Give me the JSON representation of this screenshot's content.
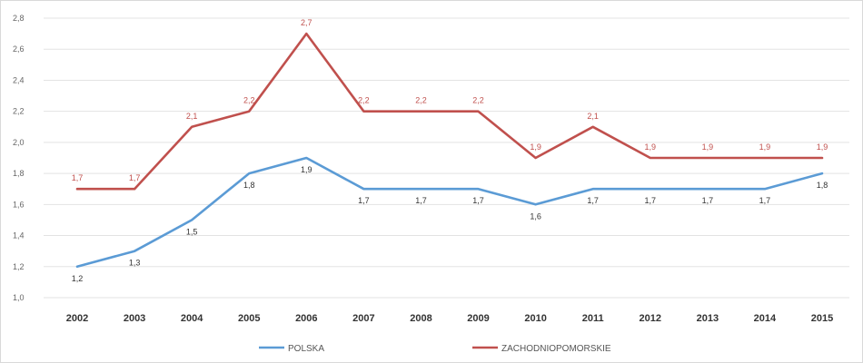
{
  "chart_data": {
    "type": "line",
    "categories": [
      "2002",
      "2003",
      "2004",
      "2005",
      "2006",
      "2007",
      "2008",
      "2009",
      "2010",
      "2011",
      "2012",
      "2013",
      "2014",
      "2015"
    ],
    "series": [
      {
        "name": "POLSKA",
        "color": "#5b9bd5",
        "values": [
          1.2,
          1.3,
          1.5,
          1.8,
          1.9,
          1.7,
          1.7,
          1.7,
          1.6,
          1.7,
          1.7,
          1.7,
          1.7,
          1.8
        ],
        "labels": [
          "1,2",
          "1,3",
          "1,5",
          "1,8",
          "1,9",
          "1,7",
          "1,7",
          "1,7",
          "1,6",
          "1,7",
          "1,7",
          "1,7",
          "1,7",
          "1,8"
        ]
      },
      {
        "name": "ZACHODNIOPOMORSKIE",
        "color": "#c0504d",
        "values": [
          1.7,
          1.7,
          2.1,
          2.2,
          2.7,
          2.2,
          2.2,
          2.2,
          1.9,
          2.1,
          1.9,
          1.9,
          1.9,
          1.9
        ],
        "labels": [
          "1,7",
          "1,7",
          "2,1",
          "2,2",
          "2,7",
          "2,2",
          "2,2",
          "2,2",
          "1,9",
          "2,1",
          "1,9",
          "1,9",
          "1,9",
          "1,9"
        ]
      }
    ],
    "ylim": [
      1.0,
      2.8
    ],
    "yticks": [
      1.0,
      1.2,
      1.4,
      1.6,
      1.8,
      2.0,
      2.2,
      2.4,
      2.6,
      2.8
    ],
    "ytick_labels": [
      "1,0",
      "1,2",
      "1,4",
      "1,6",
      "1,8",
      "2,0",
      "2,2",
      "2,4",
      "2,6",
      "2,8"
    ],
    "grid": true,
    "legend_position": "bottom"
  }
}
